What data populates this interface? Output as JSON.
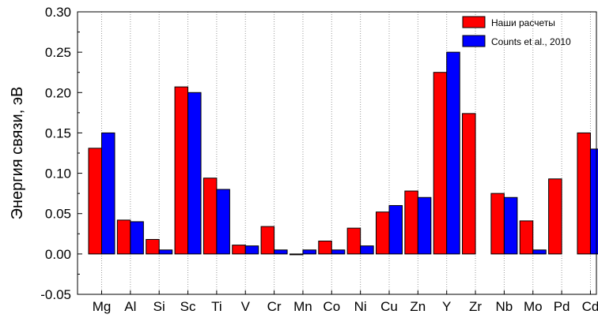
{
  "chart_data": {
    "type": "bar",
    "title": "",
    "xlabel": "",
    "ylabel": "Энергия связи, эВ",
    "ylim": [
      -0.05,
      0.3
    ],
    "yticks": [
      "-0.05",
      "0.00",
      "0.05",
      "0.10",
      "0.15",
      "0.20",
      "0.25",
      "0.30"
    ],
    "grid": "vertical dotted",
    "legend_position": "top-right",
    "categories": [
      "Mg",
      "Al",
      "Si",
      "Sc",
      "Ti",
      "V",
      "Cr",
      "Mn",
      "Co",
      "Ni",
      "Cu",
      "Zn",
      "Y",
      "Zr",
      "Nb",
      "Mo",
      "Pd",
      "Cd"
    ],
    "series": [
      {
        "name": "Наши расчеты",
        "color": "#ff0000",
        "values": [
          0.131,
          0.042,
          0.018,
          0.207,
          0.094,
          0.011,
          0.034,
          -0.001,
          0.016,
          0.032,
          0.052,
          0.078,
          0.225,
          0.174,
          0.075,
          0.041,
          0.093,
          0.15
        ]
      },
      {
        "name": "Counts et al., 2010",
        "color": "#0000ff",
        "values": [
          0.15,
          0.04,
          0.005,
          0.2,
          0.08,
          0.01,
          0.005,
          0.005,
          0.005,
          0.01,
          0.06,
          0.07,
          0.25,
          null,
          0.07,
          0.005,
          null,
          0.13
        ]
      }
    ]
  }
}
